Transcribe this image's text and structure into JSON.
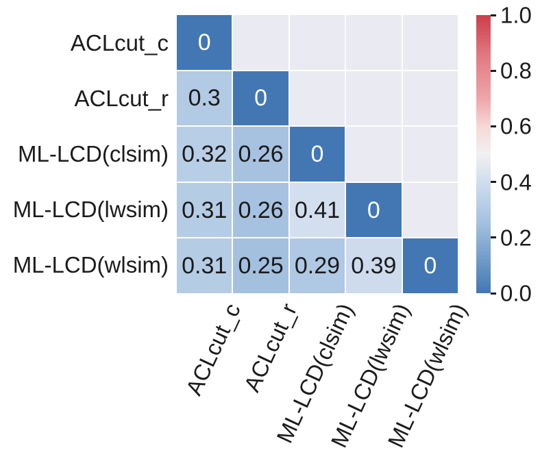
{
  "chart_data": {
    "type": "heatmap",
    "title": "",
    "categories": [
      "ACLcut_c",
      "ACLcut_r",
      "ML-LCD(clsim)",
      "ML-LCD(lwsim)",
      "ML-LCD(wlsim)"
    ],
    "matrix": [
      [
        0,
        null,
        null,
        null,
        null
      ],
      [
        0.3,
        0,
        null,
        null,
        null
      ],
      [
        0.32,
        0.26,
        0,
        null,
        null
      ],
      [
        0.31,
        0.26,
        0.41,
        0,
        null
      ],
      [
        0.31,
        0.25,
        0.29,
        0.39,
        0
      ]
    ],
    "annotations": [
      [
        "0",
        "",
        "",
        "",
        ""
      ],
      [
        "0.3",
        "0",
        "",
        "",
        ""
      ],
      [
        "0.32",
        "0.26",
        "0",
        "",
        ""
      ],
      [
        "0.31",
        "0.26",
        "0.41",
        "0",
        ""
      ],
      [
        "0.31",
        "0.25",
        "0.29",
        "0.39",
        "0"
      ]
    ],
    "mask": "upper-triangle",
    "x_tick_rotation_deg": 65,
    "colorbar": {
      "position": "right",
      "vmin": 0.0,
      "vmax": 1.0,
      "ticks": [
        1.0,
        0.8,
        0.6,
        0.4,
        0.2,
        0.0
      ],
      "tick_labels": [
        "1.0",
        "0.8",
        "0.6",
        "0.4",
        "0.2",
        "0.0"
      ]
    },
    "colormap": {
      "description": "diverging blue-white-red (RdBu-style)",
      "anchors": [
        {
          "t": 0.0,
          "rgb": [
            66,
            119,
            180
          ]
        },
        {
          "t": 0.25,
          "rgb": [
            163,
            192,
            223
          ]
        },
        {
          "t": 0.3,
          "rgb": [
            178,
            202,
            228
          ]
        },
        {
          "t": 0.4,
          "rgb": [
            208,
            221,
            238
          ]
        },
        {
          "t": 0.5,
          "rgb": [
            241,
            240,
            242
          ]
        },
        {
          "t": 0.6,
          "rgb": [
            246,
            216,
            214
          ]
        },
        {
          "t": 0.7,
          "rgb": [
            238,
            166,
            170
          ]
        },
        {
          "t": 0.85,
          "rgb": [
            226,
            122,
            131
          ]
        },
        {
          "t": 1.0,
          "rgb": [
            204,
            62,
            75
          ]
        }
      ]
    },
    "colors": {
      "background": "#ffffff",
      "masked_cell": "#eaeaf2",
      "diagonal_cell": "#4277b4",
      "grid_gap": "#ffffff",
      "annotation_dark": "#1b1b1b",
      "annotation_light": "#ffffff",
      "tick_label": "#1c1c1c",
      "tick_mark": "#1c1c1c"
    }
  }
}
